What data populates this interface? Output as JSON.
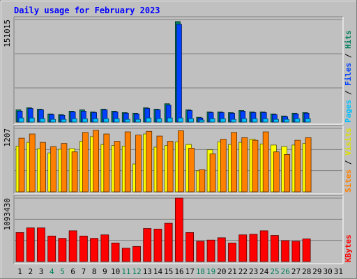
{
  "chart_data": {
    "type": "bar",
    "title": "Daily usage for February 2023",
    "days": [
      "1",
      "2",
      "3",
      "4",
      "5",
      "6",
      "7",
      "8",
      "9",
      "10",
      "11",
      "12",
      "13",
      "14",
      "15",
      "16",
      "17",
      "18",
      "19",
      "20",
      "21",
      "22",
      "23",
      "24",
      "25",
      "26",
      "27",
      "28",
      "29",
      "30",
      "31"
    ],
    "weekend_days": [
      "4",
      "5",
      "11",
      "12",
      "18",
      "19",
      "25",
      "26"
    ],
    "panels": [
      {
        "id": "hits",
        "max_label": "151015",
        "max": 151015,
        "side_labels": [
          {
            "text": "Hits",
            "color": "#00805c"
          },
          {
            "text": " / ",
            "color": "#000000"
          },
          {
            "text": "Files",
            "color": "#0040ff"
          },
          {
            "text": " / ",
            "color": "#000000"
          },
          {
            "text": "Pages",
            "color": "#00c0ff"
          }
        ],
        "series": [
          {
            "name": "Hits",
            "color": "#00805c",
            "values": [
              18000,
              21000,
              19000,
              12000,
              11000,
              16000,
              18000,
              15000,
              19000,
              16000,
              14000,
              13000,
              21000,
              19000,
              27000,
              148000,
              18000,
              7000,
              15000,
              15000,
              14000,
              17000,
              15000,
              15000,
              12000,
              9000,
              13000,
              14000
            ]
          },
          {
            "name": "Files",
            "color": "#0040ff",
            "values": [
              16000,
              20000,
              18000,
              11000,
              10000,
              15000,
              16000,
              14000,
              18000,
              15000,
              13000,
              12000,
              20000,
              18000,
              25000,
              144000,
              17000,
              6000,
              14000,
              14000,
              13000,
              16000,
              14000,
              14000,
              11000,
              8000,
              12000,
              13000
            ]
          },
          {
            "name": "Pages",
            "color": "#00c0ff",
            "values": [
              6000,
              6000,
              5000,
              4000,
              4000,
              5000,
              5000,
              5000,
              5000,
              5000,
              4000,
              4000,
              6000,
              5000,
              6000,
              6000,
              5000,
              3000,
              5000,
              5000,
              4000,
              5000,
              5000,
              5000,
              4000,
              4000,
              5000,
              5000
            ]
          }
        ]
      },
      {
        "id": "visits",
        "max_label": "1207",
        "max": 1207,
        "side_labels": [
          {
            "text": "Visits",
            "color": "#e0e000"
          },
          {
            "text": " / ",
            "color": "#000000"
          },
          {
            "text": "Sites",
            "color": "#ff8000"
          }
        ],
        "series": [
          {
            "name": "Visits",
            "color": "#ffff00",
            "values": [
              870,
              940,
              820,
              740,
              810,
              820,
              960,
              1050,
              900,
              880,
              870,
              530,
              1100,
              850,
              880,
              950,
              900,
              400,
              800,
              950,
              900,
              940,
              1000,
              910,
              890,
              860,
              890,
              920
            ]
          },
          {
            "name": "Sites",
            "color": "#ff8000",
            "values": [
              1020,
              1100,
              940,
              860,
              920,
              760,
              1130,
              1170,
              1100,
              960,
              1140,
              1080,
              1150,
              1060,
              960,
              1160,
              830,
              420,
              720,
              1000,
              1130,
              1030,
              980,
              1140,
              760,
              710,
              980,
              1030
            ]
          }
        ]
      },
      {
        "id": "kbytes",
        "max_label": "1093430",
        "max": 1093430,
        "side_labels": [
          {
            "text": "KBytes",
            "color": "#ff0000"
          }
        ],
        "series": [
          {
            "name": "KBytes",
            "color": "#ff0000",
            "values": [
              500000,
              580000,
              580000,
              440000,
              400000,
              530000,
              440000,
              400000,
              460000,
              320000,
              230000,
              260000,
              570000,
              560000,
              660000,
              1093430,
              500000,
              350000,
              370000,
              410000,
              320000,
              460000,
              470000,
              530000,
              450000,
              360000,
              350000,
              390000
            ]
          }
        ]
      }
    ]
  }
}
